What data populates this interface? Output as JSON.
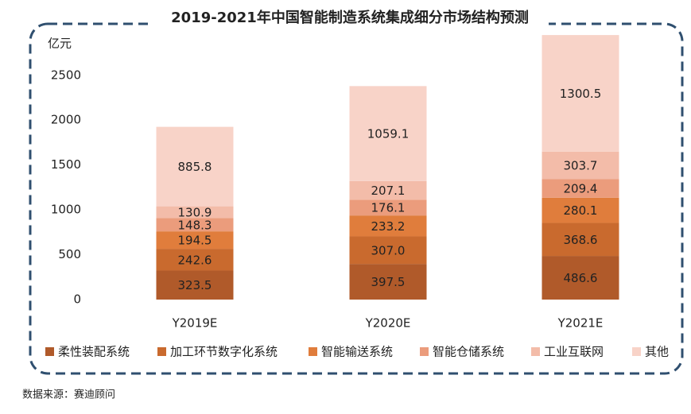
{
  "chart_data": {
    "type": "stacked_bar",
    "title": "2019-2021年中国智能制造系统集成细分市场结构预测",
    "y_label": "亿元",
    "source": "数据来源：赛迪顾问",
    "categories": [
      "Y2019E",
      "Y2020E",
      "Y2021E"
    ],
    "series": [
      {
        "name": "柔性装配系统",
        "color": "#b05a2a",
        "values": [
          323.5,
          397.5,
          486.6
        ]
      },
      {
        "name": "加工环节数字化系统",
        "color": "#c96a2e",
        "values": [
          242.6,
          307.0,
          368.6
        ],
        "value_labels": [
          "242.6",
          "307.0",
          "368.6"
        ]
      },
      {
        "name": "智能输送系统",
        "color": "#e07d3c",
        "values": [
          194.5,
          233.2,
          280.1
        ]
      },
      {
        "name": "智能仓储系统",
        "color": "#eb9c7c",
        "values": [
          148.3,
          176.1,
          209.4
        ]
      },
      {
        "name": "工业互联网",
        "color": "#f3bca9",
        "values": [
          130.9,
          207.1,
          303.7
        ]
      },
      {
        "name": "其他",
        "color": "#f8d3c8",
        "values": [
          885.8,
          1059.1,
          1300.5
        ]
      }
    ],
    "ylim": [
      0,
      2950
    ],
    "yticks": [
      0,
      500,
      1000,
      1500,
      2000,
      2500
    ],
    "grid": false,
    "legend": "bottom"
  }
}
